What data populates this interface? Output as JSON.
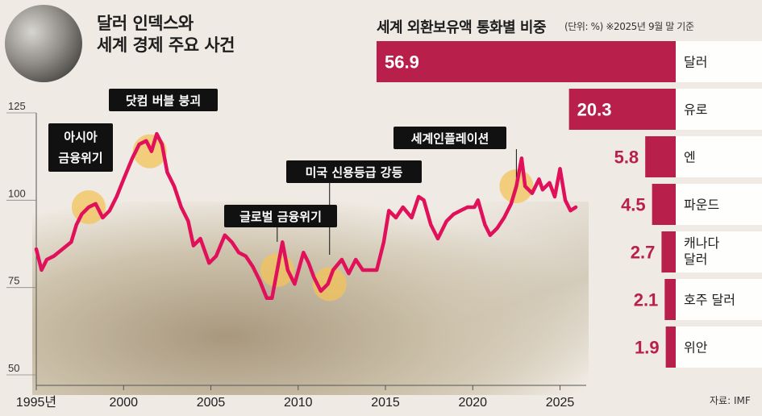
{
  "header": {
    "title": "달러 인덱스와\n세계 경제 주요 사건"
  },
  "reserves": {
    "title": "세계 외환보유액 통화별 비중",
    "note": "(단위: %) ※2025년 9월 말 기준"
  },
  "source": "자료: IMF",
  "colors": {
    "accent": "#b8204b",
    "line": "#e0115a",
    "highlight": "#f3c35a"
  },
  "chart_data": [
    {
      "type": "line",
      "title": "달러 인덱스와 세계 경제 주요 사건",
      "x_ticks": [
        "1995년",
        "2000",
        "2005",
        "2010",
        "2015",
        "2020",
        "2025"
      ],
      "y_ticks": [
        "125",
        "100",
        "75",
        "50"
      ],
      "ylim": [
        50,
        125
      ],
      "xlim": [
        1995,
        2026.5
      ],
      "series": [
        {
          "values": [
            [
              1995.0,
              86
            ],
            [
              1995.3,
              80
            ],
            [
              1995.6,
              83
            ],
            [
              1996.0,
              84
            ],
            [
              1996.5,
              86
            ],
            [
              1997.0,
              88
            ],
            [
              1997.3,
              93
            ],
            [
              1997.6,
              96
            ],
            [
              1998.0,
              98
            ],
            [
              1998.4,
              99
            ],
            [
              1998.8,
              95
            ],
            [
              1999.2,
              97
            ],
            [
              1999.6,
              101
            ],
            [
              2000.0,
              106
            ],
            [
              2000.5,
              112
            ],
            [
              2000.9,
              116
            ],
            [
              2001.3,
              117
            ],
            [
              2001.6,
              114
            ],
            [
              2001.9,
              119
            ],
            [
              2002.2,
              116
            ],
            [
              2002.5,
              108
            ],
            [
              2002.9,
              104
            ],
            [
              2003.3,
              98
            ],
            [
              2003.7,
              94
            ],
            [
              2004.0,
              87
            ],
            [
              2004.4,
              89
            ],
            [
              2004.9,
              82
            ],
            [
              2005.3,
              84
            ],
            [
              2005.8,
              90
            ],
            [
              2006.2,
              88
            ],
            [
              2006.6,
              85
            ],
            [
              2007.0,
              84
            ],
            [
              2007.4,
              81
            ],
            [
              2007.8,
              77
            ],
            [
              2008.2,
              72
            ],
            [
              2008.5,
              72
            ],
            [
              2008.8,
              80
            ],
            [
              2009.1,
              88
            ],
            [
              2009.4,
              80
            ],
            [
              2009.8,
              76
            ],
            [
              2010.3,
              85
            ],
            [
              2010.6,
              82
            ],
            [
              2010.9,
              78
            ],
            [
              2011.3,
              74
            ],
            [
              2011.7,
              76
            ],
            [
              2012.0,
              80
            ],
            [
              2012.5,
              83
            ],
            [
              2012.9,
              79
            ],
            [
              2013.3,
              83
            ],
            [
              2013.7,
              80
            ],
            [
              2014.1,
              80
            ],
            [
              2014.5,
              80
            ],
            [
              2014.9,
              88
            ],
            [
              2015.2,
              97
            ],
            [
              2015.6,
              95
            ],
            [
              2016.0,
              98
            ],
            [
              2016.5,
              95
            ],
            [
              2016.9,
              101
            ],
            [
              2017.2,
              100
            ],
            [
              2017.6,
              93
            ],
            [
              2018.0,
              89
            ],
            [
              2018.5,
              94
            ],
            [
              2018.9,
              96
            ],
            [
              2019.3,
              97
            ],
            [
              2019.7,
              98
            ],
            [
              2020.1,
              98
            ],
            [
              2020.3,
              100
            ],
            [
              2020.7,
              93
            ],
            [
              2021.0,
              90
            ],
            [
              2021.4,
              92
            ],
            [
              2021.8,
              95
            ],
            [
              2022.2,
              99
            ],
            [
              2022.5,
              104
            ],
            [
              2022.8,
              112
            ],
            [
              2023.0,
              104
            ],
            [
              2023.4,
              102
            ],
            [
              2023.8,
              106
            ],
            [
              2024.0,
              103
            ],
            [
              2024.4,
              105
            ],
            [
              2024.7,
              101
            ],
            [
              2025.0,
              109
            ],
            [
              2025.3,
              100
            ],
            [
              2025.6,
              97
            ],
            [
              2025.9,
              98
            ]
          ]
        }
      ],
      "annotations": [
        {
          "label": "아시아\n금융위기",
          "x": 1998.0
        },
        {
          "label": "닷컴 버블 붕괴",
          "x": 2001.5
        },
        {
          "label": "글로벌 금융위기",
          "x": 2008.8
        },
        {
          "label": "미국 신용등급 강등",
          "x": 2011.8
        },
        {
          "label": "세계인플레이션",
          "x": 2022.5
        }
      ]
    },
    {
      "type": "bar",
      "title": "세계 외환보유액 통화별 비중",
      "categories": [
        "달러",
        "유로",
        "엔",
        "파운드",
        "캐나다\n달러",
        "호주 달러",
        "위안"
      ],
      "values": [
        56.9,
        20.3,
        5.8,
        4.5,
        2.7,
        2.1,
        1.9
      ]
    }
  ]
}
